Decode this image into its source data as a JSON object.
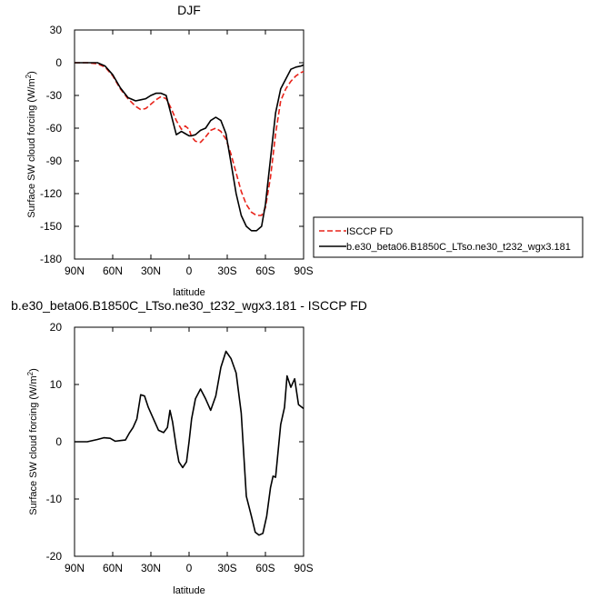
{
  "chart_data": [
    {
      "type": "line",
      "title": "DJF",
      "xlabel": "latitude",
      "ylabel": "Surface SW cloud forcing (W/m",
      "ylabel_sup": "2",
      "ylabel_close": ")",
      "xlim": [
        90,
        -90
      ],
      "ylim": [
        -180,
        30
      ],
      "xticks": [
        90,
        60,
        30,
        0,
        -30,
        -60,
        -90
      ],
      "xticklabels": [
        "90N",
        "60N",
        "30N",
        "0",
        "30S",
        "60S",
        "90S"
      ],
      "yticks": [
        30,
        0,
        -30,
        -60,
        -90,
        -120,
        -150,
        -180
      ],
      "yticklabels": [
        "30",
        "0",
        "-30",
        "-60",
        "-90",
        "-120",
        "-150",
        "-180"
      ],
      "legend_position": "right, outside plot",
      "series": [
        {
          "name": "ISCCP FD",
          "color": "#e8231a",
          "dashed": true,
          "x": [
            90,
            80,
            72,
            66,
            60,
            54,
            48,
            42,
            38,
            34,
            30,
            26,
            22,
            18,
            14,
            10,
            6,
            3,
            0,
            -2,
            -5,
            -9,
            -13,
            -17,
            -21,
            -25,
            -29,
            -33,
            -37,
            -41,
            -45,
            -49,
            -53,
            -57,
            -60,
            -64,
            -68,
            -72,
            -76,
            -80,
            -84,
            -88,
            -90
          ],
          "y": [
            0,
            0,
            -1,
            -4,
            -12,
            -24,
            -33,
            -40,
            -43,
            -42,
            -38,
            -34,
            -31,
            -33,
            -42,
            -53,
            -61,
            -58,
            -61,
            -68,
            -72,
            -73,
            -68,
            -62,
            -60,
            -63,
            -70,
            -84,
            -101,
            -118,
            -130,
            -137,
            -140,
            -140,
            -133,
            -105,
            -65,
            -35,
            -24,
            -17,
            -12,
            -9,
            -8
          ]
        },
        {
          "name": "b.e30_beta06.B1850C_LTso.ne30_t232_wgx3.181",
          "color": "#000000",
          "dashed": false,
          "x": [
            90,
            80,
            72,
            66,
            60,
            54,
            48,
            42,
            38,
            34,
            30,
            26,
            22,
            18,
            14,
            10,
            6,
            3,
            0,
            -2,
            -5,
            -9,
            -13,
            -17,
            -21,
            -25,
            -29,
            -33,
            -37,
            -41,
            -45,
            -49,
            -53,
            -57,
            -60,
            -64,
            -68,
            -72,
            -76,
            -80,
            -84,
            -88,
            -90
          ],
          "y": [
            0,
            0,
            0,
            -3,
            -11,
            -23,
            -32,
            -35,
            -34,
            -33,
            -30,
            -28,
            -28,
            -30,
            -48,
            -66,
            -63,
            -65,
            -67,
            -67,
            -66,
            -62,
            -60,
            -53,
            -50,
            -53,
            -65,
            -92,
            -120,
            -140,
            -150,
            -154,
            -154,
            -150,
            -130,
            -88,
            -46,
            -24,
            -15,
            -6,
            -4,
            -3,
            -2
          ]
        }
      ]
    },
    {
      "type": "line",
      "title": "b.e30_beta06.B1850C_LTso.ne30_t232_wgx3.181 - ISCCP FD",
      "xlabel": "latitude",
      "ylabel": "Surface SW cloud forcing (W/m",
      "ylabel_sup": "2",
      "ylabel_close": ")",
      "xlim": [
        90,
        -90
      ],
      "ylim": [
        -20,
        20
      ],
      "xticks": [
        90,
        60,
        30,
        0,
        -30,
        -60,
        -90
      ],
      "xticklabels": [
        "90N",
        "60N",
        "30N",
        "0",
        "30S",
        "60S",
        "90S"
      ],
      "yticks": [
        20,
        10,
        0,
        -10,
        -20
      ],
      "yticklabels": [
        "20",
        "10",
        "0",
        "-10",
        "-20"
      ],
      "series": [
        {
          "color": "#000000",
          "dashed": false,
          "x": [
            90,
            80,
            72,
            67,
            62,
            58,
            54,
            50,
            47,
            44,
            41,
            38,
            35,
            32,
            28,
            24,
            20,
            17,
            15,
            13,
            10,
            8,
            5,
            2,
            0,
            -2,
            -5,
            -9,
            -13,
            -17,
            -21,
            -25,
            -29,
            -33,
            -37,
            -41,
            -45,
            -49,
            -52,
            -55,
            -58,
            -61,
            -64,
            -66,
            -68,
            -72,
            -75,
            -77,
            -80,
            -83,
            -86,
            -90
          ],
          "y": [
            0,
            0,
            0.4,
            0.7,
            0.6,
            0.1,
            0.2,
            0.3,
            1.5,
            2.5,
            4,
            8.2,
            8,
            6,
            4,
            2,
            1.6,
            2.5,
            5.5,
            3.5,
            -1,
            -3.5,
            -4.5,
            -3.5,
            0,
            4,
            7.5,
            9.2,
            7.5,
            5.5,
            8,
            13,
            15.8,
            14.5,
            12,
            5,
            -9.5,
            -13,
            -15.8,
            -16.3,
            -16,
            -13,
            -8,
            -6,
            -6.2,
            3,
            6,
            11.5,
            9.5,
            11,
            6.5,
            5.8
          ]
        }
      ]
    }
  ]
}
